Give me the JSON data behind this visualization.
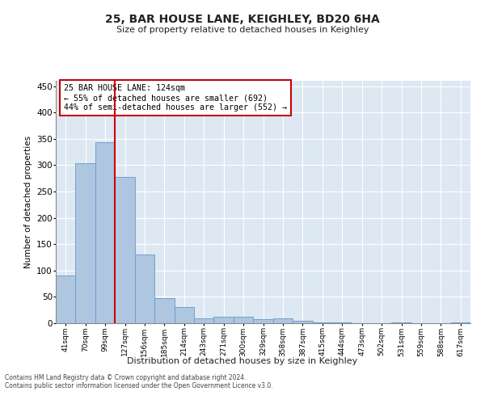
{
  "title": "25, BAR HOUSE LANE, KEIGHLEY, BD20 6HA",
  "subtitle": "Size of property relative to detached houses in Keighley",
  "xlabel": "Distribution of detached houses by size in Keighley",
  "ylabel": "Number of detached properties",
  "categories": [
    "41sqm",
    "70sqm",
    "99sqm",
    "127sqm",
    "156sqm",
    "185sqm",
    "214sqm",
    "243sqm",
    "271sqm",
    "300sqm",
    "329sqm",
    "358sqm",
    "387sqm",
    "415sqm",
    "444sqm",
    "473sqm",
    "502sqm",
    "531sqm",
    "559sqm",
    "588sqm",
    "617sqm"
  ],
  "values": [
    90,
    303,
    343,
    277,
    131,
    47,
    31,
    9,
    12,
    12,
    7,
    9,
    4,
    1,
    1,
    0,
    0,
    2,
    0,
    0,
    2
  ],
  "bar_color": "#aec6df",
  "bar_edge_color": "#6699cc",
  "vline_color": "#cc0000",
  "vline_x": 2.5,
  "annotation_text": "25 BAR HOUSE LANE: 124sqm\n← 55% of detached houses are smaller (692)\n44% of semi-detached houses are larger (552) →",
  "annotation_box_color": "#ffffff",
  "annotation_box_edge": "#cc0000",
  "ylim": [
    0,
    460
  ],
  "yticks": [
    0,
    50,
    100,
    150,
    200,
    250,
    300,
    350,
    400,
    450
  ],
  "bg_color": "#dde8f3",
  "footer_line1": "Contains HM Land Registry data © Crown copyright and database right 2024.",
  "footer_line2": "Contains public sector information licensed under the Open Government Licence v3.0."
}
